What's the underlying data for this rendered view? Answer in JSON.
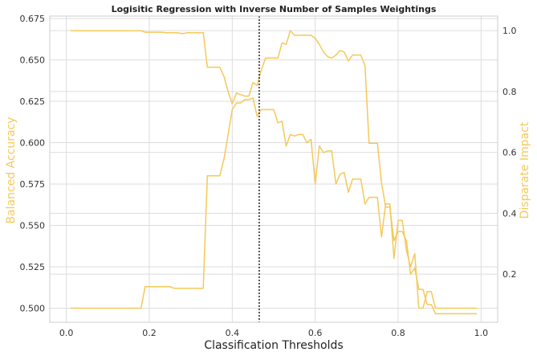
{
  "chart_data": {
    "type": "line",
    "title": "Logisitic Regression with Inverse Number of Samples Weightings",
    "xlabel": "Classification Thresholds",
    "ylabel_left": "Balanced Accuracy",
    "ylabel_right": "Disparate Impact",
    "xlim": [
      -0.04,
      1.04
    ],
    "ylim_left": [
      0.4915,
      0.6765
    ],
    "ylim_right": [
      0.042,
      1.048
    ],
    "xticks": [
      0.0,
      0.2,
      0.4,
      0.6,
      0.8,
      1.0
    ],
    "xtick_labels": [
      "0.0",
      "0.2",
      "0.4",
      "0.6",
      "0.8",
      "1.0"
    ],
    "yticks_left": [
      0.5,
      0.525,
      0.55,
      0.575,
      0.6,
      0.625,
      0.65,
      0.675
    ],
    "ytick_labels_left": [
      "0.500",
      "0.525",
      "0.550",
      "0.575",
      "0.600",
      "0.625",
      "0.650",
      "0.675"
    ],
    "yticks_right": [
      0.2,
      0.4,
      0.6,
      0.8,
      1.0
    ],
    "ytick_labels_right": [
      "0.2",
      "0.4",
      "0.6",
      "0.8",
      "1.0"
    ],
    "grid": true,
    "vline_x": 0.465,
    "line_color": "#f5c85a",
    "series": [
      {
        "axis": "left",
        "x": [
          0.01,
          0.18,
          0.19,
          0.25,
          0.26,
          0.27,
          0.28,
          0.29,
          0.3,
          0.33,
          0.34,
          0.37,
          0.38,
          0.39,
          0.4,
          0.41,
          0.42,
          0.43,
          0.44,
          0.45,
          0.46,
          0.47,
          0.48,
          0.49,
          0.5,
          0.51,
          0.52,
          0.53,
          0.54,
          0.55,
          0.56,
          0.57,
          0.58,
          0.59,
          0.6,
          0.61,
          0.62,
          0.63,
          0.64,
          0.65,
          0.66,
          0.67,
          0.68,
          0.69,
          0.7,
          0.71,
          0.72,
          0.73,
          0.74,
          0.75,
          0.76,
          0.77,
          0.78,
          0.79,
          0.8,
          0.81,
          0.82,
          0.83,
          0.84,
          0.85,
          0.86,
          0.87,
          0.88,
          0.89,
          0.9,
          0.99
        ],
        "y": [
          0.5,
          0.5,
          0.513,
          0.513,
          0.512,
          0.512,
          0.512,
          0.512,
          0.512,
          0.512,
          0.58,
          0.58,
          0.59,
          0.605,
          0.62,
          0.624,
          0.624,
          0.626,
          0.626,
          0.627,
          0.616,
          0.62,
          0.62,
          0.62,
          0.62,
          0.612,
          0.613,
          0.598,
          0.605,
          0.604,
          0.605,
          0.605,
          0.6,
          0.602,
          0.575,
          0.598,
          0.594,
          0.595,
          0.595,
          0.575,
          0.581,
          0.582,
          0.57,
          0.578,
          0.578,
          0.578,
          0.563,
          0.567,
          0.567,
          0.567,
          0.543,
          0.563,
          0.563,
          0.53,
          0.553,
          0.553,
          0.535,
          0.525,
          0.533,
          0.5,
          0.5,
          0.51,
          0.51,
          0.5,
          0.5,
          0.5
        ]
      },
      {
        "axis": "right",
        "x": [
          0.01,
          0.18,
          0.19,
          0.23,
          0.24,
          0.27,
          0.28,
          0.29,
          0.3,
          0.33,
          0.34,
          0.37,
          0.38,
          0.39,
          0.4,
          0.41,
          0.42,
          0.43,
          0.44,
          0.45,
          0.46,
          0.47,
          0.48,
          0.49,
          0.5,
          0.51,
          0.52,
          0.53,
          0.54,
          0.55,
          0.56,
          0.57,
          0.58,
          0.59,
          0.6,
          0.61,
          0.62,
          0.63,
          0.64,
          0.65,
          0.66,
          0.67,
          0.68,
          0.69,
          0.7,
          0.71,
          0.72,
          0.73,
          0.74,
          0.75,
          0.76,
          0.77,
          0.78,
          0.79,
          0.8,
          0.81,
          0.82,
          0.83,
          0.84,
          0.85,
          0.86,
          0.87,
          0.88,
          0.89,
          0.9,
          0.99
        ],
        "y": [
          1.0,
          1.0,
          0.995,
          0.995,
          0.993,
          0.993,
          0.99,
          0.993,
          0.993,
          0.993,
          0.88,
          0.88,
          0.85,
          0.8,
          0.76,
          0.795,
          0.79,
          0.785,
          0.785,
          0.83,
          0.82,
          0.87,
          0.91,
          0.91,
          0.91,
          0.91,
          0.96,
          0.955,
          1.0,
          0.985,
          0.985,
          0.985,
          0.985,
          0.985,
          0.975,
          0.955,
          0.93,
          0.915,
          0.91,
          0.92,
          0.935,
          0.93,
          0.9,
          0.92,
          0.92,
          0.92,
          0.885,
          0.63,
          0.63,
          0.63,
          0.5,
          0.42,
          0.42,
          0.31,
          0.34,
          0.34,
          0.31,
          0.2,
          0.22,
          0.15,
          0.15,
          0.1,
          0.1,
          0.07,
          0.07,
          0.07
        ]
      }
    ]
  }
}
